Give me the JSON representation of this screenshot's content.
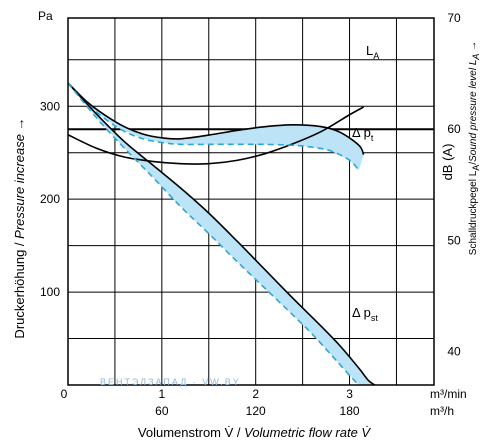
{
  "chart_data": {
    "type": "line",
    "title": "",
    "y_unit_label": "Pa",
    "ylabel_de": "Druckerhöhung / ",
    "ylabel_en": "Pressure increase →",
    "y_ticks": [
      100,
      200,
      300
    ],
    "ylim": [
      0,
      395
    ],
    "y_right_ticks": [
      40,
      50,
      60,
      70
    ],
    "y_right_ylim": [
      37,
      70
    ],
    "y_right_label": "dB (A)",
    "y_right_title_de": "Schalldruckpegel L",
    "y_right_title_sub1": "A",
    "y_right_title_mid": "/",
    "y_right_title_en": "Sound pressure level L",
    "y_right_title_sub2": "A",
    "y_right_title_arrow": " →",
    "x_ticks_m3min": [
      0,
      1,
      2,
      3
    ],
    "x_unit_m3min": "m³/min",
    "x_ticks_m3h": [
      60,
      120,
      180
    ],
    "x_unit_m3h": "m³/h",
    "xlim": [
      0,
      3.9
    ],
    "xlabel_de": "Volumenstrom V̇ / ",
    "xlabel_en": "Volumetric flow rate V̇",
    "grid": true,
    "watermark_text": "ВЕНТЭЛЗАПАД  ·  VW.BY",
    "series": [
      {
        "name": "L",
        "name_sub": "A",
        "axis": "right",
        "style": "solid",
        "color": "#000000",
        "x": [
          0.0,
          0.3,
          0.6,
          0.9,
          1.2,
          1.5,
          1.8,
          2.1,
          2.4,
          2.7,
          3.0,
          3.15
        ],
        "y": [
          59.5,
          58.3,
          57.5,
          57.1,
          56.9,
          56.9,
          57.2,
          57.8,
          58.7,
          59.8,
          61.3,
          62.0
        ]
      },
      {
        "name": "Δ p",
        "name_sub": "t",
        "axis": "left",
        "style": "solid",
        "color": "#000000",
        "x": [
          0.0,
          0.2,
          0.4,
          0.6,
          0.8,
          1.0,
          1.2,
          1.5,
          1.8,
          2.1,
          2.4,
          2.7,
          2.9,
          3.1,
          3.15
        ],
        "y": [
          325,
          305,
          290,
          278,
          270,
          266,
          265,
          269,
          274,
          278,
          280,
          278,
          272,
          258,
          248
        ]
      },
      {
        "name": "Δ p",
        "name_sub": "t",
        "axis": "left",
        "style": "dashed",
        "color": "#2aa8dc",
        "x": [
          0.0,
          0.2,
          0.4,
          0.6,
          0.8,
          1.0,
          1.2,
          1.5,
          1.8,
          2.1,
          2.4,
          2.6,
          2.8,
          3.0,
          3.1
        ],
        "y": [
          325,
          303,
          286,
          273,
          265,
          261,
          259,
          259,
          259,
          259,
          258,
          256,
          252,
          242,
          231
        ]
      },
      {
        "name": "Δ p",
        "name_sub": "st",
        "axis": "left",
        "style": "solid",
        "color": "#000000",
        "x": [
          0.0,
          0.3,
          0.6,
          0.9,
          1.2,
          1.5,
          1.8,
          2.1,
          2.4,
          2.7,
          2.9,
          3.1,
          3.2,
          3.27
        ],
        "y": [
          325,
          292,
          262,
          237,
          212,
          185,
          155,
          124,
          93,
          63,
          42,
          18,
          5,
          0
        ]
      },
      {
        "name": "Δ p",
        "name_sub": "st",
        "axis": "left",
        "style": "dashed",
        "color": "#2aa8dc",
        "x": [
          0.0,
          0.3,
          0.6,
          0.9,
          1.2,
          1.5,
          1.8,
          2.1,
          2.4,
          2.6,
          2.8,
          2.95,
          3.05,
          3.1
        ],
        "y": [
          325,
          288,
          255,
          224,
          192,
          163,
          133,
          104,
          75,
          55,
          33,
          16,
          5,
          0
        ]
      }
    ],
    "bands": [
      {
        "upper_series": 1,
        "lower_series": 2,
        "fill": "#bde4f6"
      },
      {
        "upper_series": 3,
        "lower_series": 4,
        "fill": "#bde4f6"
      }
    ],
    "curve_labels": [
      {
        "series": 0,
        "text": "L",
        "sub": "A"
      },
      {
        "series": 1,
        "text": "Δ p",
        "sub": "t"
      },
      {
        "series": 3,
        "text": "Δ p",
        "sub": "st"
      }
    ]
  }
}
